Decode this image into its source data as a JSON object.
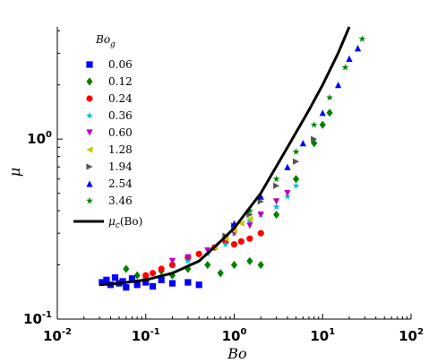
{
  "chart_data": {
    "type": "scatter",
    "xlabel": "Bo",
    "ylabel": "μ",
    "xscale": "log",
    "yscale": "log",
    "xlim": [
      0.01,
      100
    ],
    "ylim": [
      0.1,
      4.2
    ],
    "x_ticks": [
      {
        "base": "10",
        "exp": "-2",
        "value": 0.01
      },
      {
        "base": "10",
        "exp": "-1",
        "value": 0.1
      },
      {
        "base": "10",
        "exp": "0",
        "value": 1
      },
      {
        "base": "10",
        "exp": "1",
        "value": 10
      },
      {
        "base": "10",
        "exp": "2",
        "value": 100
      }
    ],
    "y_ticks": [
      {
        "base": "10",
        "exp": "-1",
        "value": 0.1
      },
      {
        "base": "10",
        "exp": "0",
        "value": 1
      }
    ],
    "legend": {
      "title_main": "Bo",
      "title_sub": "g",
      "placement": "top-left"
    },
    "series": [
      {
        "name": "0.06",
        "marker": "square",
        "color": "#0000ff",
        "points": [
          [
            0.032,
            0.16
          ],
          [
            0.036,
            0.165
          ],
          [
            0.04,
            0.155
          ],
          [
            0.045,
            0.17
          ],
          [
            0.05,
            0.158
          ],
          [
            0.055,
            0.162
          ],
          [
            0.06,
            0.15
          ],
          [
            0.07,
            0.168
          ],
          [
            0.08,
            0.155
          ],
          [
            0.1,
            0.16
          ],
          [
            0.12,
            0.152
          ],
          [
            0.15,
            0.165
          ],
          [
            0.2,
            0.158
          ],
          [
            0.3,
            0.16
          ],
          [
            0.4,
            0.155
          ]
        ]
      },
      {
        "name": "0.12",
        "marker": "diamond",
        "color": "#008000",
        "points": [
          [
            0.06,
            0.19
          ],
          [
            0.08,
            0.175
          ],
          [
            0.1,
            0.17
          ],
          [
            0.15,
            0.185
          ],
          [
            0.2,
            0.175
          ],
          [
            0.3,
            0.19
          ],
          [
            0.5,
            0.2
          ],
          [
            0.7,
            0.18
          ],
          [
            1.0,
            0.2
          ],
          [
            1.5,
            0.21
          ],
          [
            2.0,
            0.2
          ],
          [
            3.0,
            0.38
          ],
          [
            5.0,
            0.6
          ],
          [
            8.0,
            0.95
          ],
          [
            10.0,
            1.2
          ],
          [
            12.0,
            1.4
          ]
        ]
      },
      {
        "name": "0.24",
        "marker": "circle",
        "color": "#ff0000",
        "points": [
          [
            0.1,
            0.175
          ],
          [
            0.12,
            0.18
          ],
          [
            0.15,
            0.19
          ],
          [
            0.2,
            0.2
          ],
          [
            0.3,
            0.22
          ],
          [
            0.4,
            0.23
          ],
          [
            0.6,
            0.25
          ],
          [
            0.8,
            0.27
          ],
          [
            1.0,
            0.26
          ],
          [
            1.2,
            0.27
          ],
          [
            1.5,
            0.28
          ],
          [
            2.0,
            0.3
          ]
        ]
      },
      {
        "name": "0.36",
        "marker": "star",
        "color": "#00c0c0",
        "points": [
          [
            0.3,
            0.21
          ],
          [
            0.5,
            0.23
          ],
          [
            0.8,
            0.26
          ],
          [
            1.0,
            0.3
          ],
          [
            1.5,
            0.35
          ],
          [
            2.0,
            0.38
          ],
          [
            3.0,
            0.42
          ],
          [
            4.0,
            0.48
          ],
          [
            5.0,
            0.55
          ]
        ]
      },
      {
        "name": "0.60",
        "marker": "triangle-down",
        "color": "#c000c0",
        "points": [
          [
            0.2,
            0.21
          ],
          [
            0.3,
            0.22
          ],
          [
            0.5,
            0.24
          ],
          [
            0.8,
            0.28
          ],
          [
            1.0,
            0.3
          ],
          [
            1.5,
            0.33
          ],
          [
            2.0,
            0.38
          ],
          [
            3.0,
            0.45
          ],
          [
            4.0,
            0.5
          ]
        ]
      },
      {
        "name": "1.28",
        "marker": "triangle-left",
        "color": "#c8c800",
        "points": [
          [
            0.6,
            0.25
          ],
          [
            0.8,
            0.28
          ],
          [
            1.0,
            0.31
          ],
          [
            1.2,
            0.34
          ],
          [
            1.5,
            0.36
          ]
        ]
      },
      {
        "name": "1.94",
        "marker": "triangle-right",
        "color": "#555555",
        "points": [
          [
            0.8,
            0.29
          ],
          [
            1.0,
            0.33
          ],
          [
            1.5,
            0.38
          ],
          [
            2.0,
            0.45
          ],
          [
            3.0,
            0.55
          ],
          [
            5.0,
            0.75
          ],
          [
            8.0,
            1.0
          ]
        ]
      },
      {
        "name": "2.54",
        "marker": "triangle-up",
        "color": "#0000ff",
        "points": [
          [
            1.0,
            0.34
          ],
          [
            2.0,
            0.48
          ],
          [
            4.0,
            0.7
          ],
          [
            6.0,
            0.95
          ],
          [
            10.0,
            1.4
          ],
          [
            15.0,
            2.0
          ],
          [
            20.0,
            2.8
          ],
          [
            25.0,
            3.2
          ]
        ]
      },
      {
        "name": "3.46",
        "marker": "star",
        "color": "#008000",
        "points": [
          [
            1.5,
            0.4
          ],
          [
            3.0,
            0.6
          ],
          [
            5.0,
            0.85
          ],
          [
            8.0,
            1.2
          ],
          [
            12.0,
            1.7
          ],
          [
            18.0,
            2.5
          ],
          [
            28.0,
            3.6
          ]
        ]
      },
      {
        "name": "μc(Bo)",
        "label_main": "μ",
        "label_sub": "c",
        "label_tail": "(Bo)",
        "marker": "line",
        "color": "#000000",
        "curve": [
          [
            0.03,
            0.155
          ],
          [
            0.05,
            0.158
          ],
          [
            0.1,
            0.165
          ],
          [
            0.2,
            0.18
          ],
          [
            0.4,
            0.21
          ],
          [
            0.7,
            0.27
          ],
          [
            1.0,
            0.32
          ],
          [
            2.0,
            0.5
          ],
          [
            4.0,
            0.9
          ],
          [
            7.0,
            1.45
          ],
          [
            10.0,
            2.0
          ],
          [
            15.0,
            3.0
          ],
          [
            20.0,
            4.2
          ]
        ]
      }
    ]
  }
}
